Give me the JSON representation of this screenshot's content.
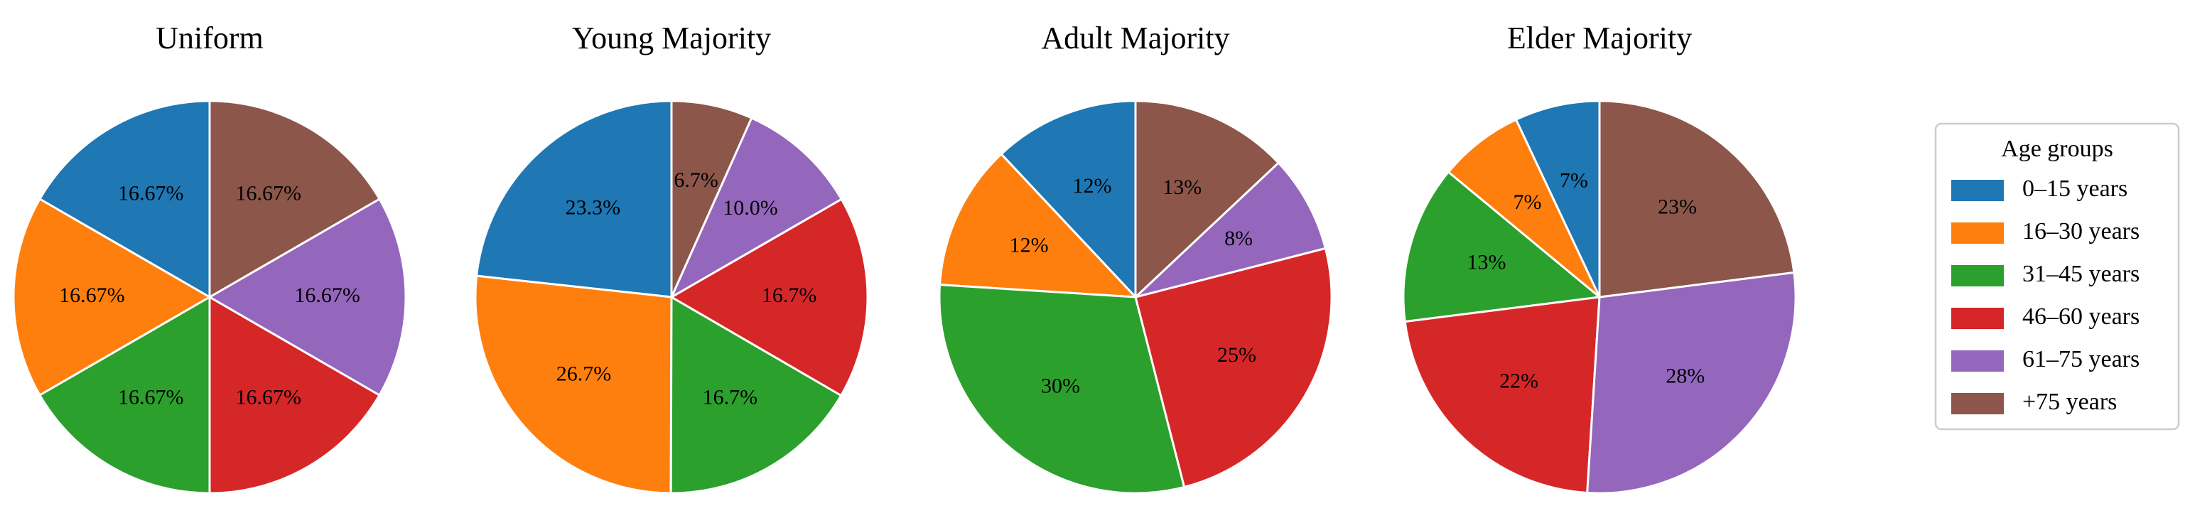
{
  "chart_data": [
    {
      "type": "pie",
      "title": "Uniform",
      "categories": [
        "0–15 years",
        "16–30 years",
        "31–45 years",
        "46–60 years",
        "61–75 years",
        "+75 years"
      ],
      "values": [
        16.67,
        16.67,
        16.67,
        16.67,
        16.67,
        16.67
      ],
      "labels": [
        "16.67%",
        "16.67%",
        "16.67%",
        "16.67%",
        "16.67%",
        "16.67%"
      ]
    },
    {
      "type": "pie",
      "title": "Young Majority",
      "categories": [
        "0–15 years",
        "16–30 years",
        "31–45 years",
        "46–60 years",
        "61–75 years",
        "+75 years"
      ],
      "values": [
        23.3,
        26.7,
        16.7,
        16.7,
        10.0,
        6.7
      ],
      "labels": [
        "23.3%",
        "26.7%",
        "16.7%",
        "16.7%",
        "10.0%",
        "6.7%"
      ]
    },
    {
      "type": "pie",
      "title": "Adult Majority",
      "categories": [
        "0–15 years",
        "16–30 years",
        "31–45 years",
        "46–60 years",
        "61–75 years",
        "+75 years"
      ],
      "values": [
        12,
        12,
        30,
        25,
        8,
        13
      ],
      "labels": [
        "12%",
        "12%",
        "30%",
        "25%",
        "8%",
        "13%"
      ]
    },
    {
      "type": "pie",
      "title": "Elder Majority",
      "categories": [
        "0–15 years",
        "16–30 years",
        "31–45 years",
        "46–60 years",
        "61–75 years",
        "+75 years"
      ],
      "values": [
        7,
        7,
        13,
        22,
        28,
        23
      ],
      "labels": [
        "7%",
        "7%",
        "13%",
        "22%",
        "28%",
        "23%"
      ]
    }
  ],
  "legend": {
    "title": "Age groups",
    "placement": "right",
    "items": [
      {
        "label": "0–15 years",
        "color": "#1f77b4"
      },
      {
        "label": "16–30 years",
        "color": "#ff7f0e"
      },
      {
        "label": "31–45 years",
        "color": "#2ca02c"
      },
      {
        "label": "46–60 years",
        "color": "#d62728"
      },
      {
        "label": "61–75 years",
        "color": "#9467bd"
      },
      {
        "label": "+75 years",
        "color": "#8c564b"
      }
    ]
  },
  "start_angle_deg": 90,
  "direction": "counterclockwise"
}
